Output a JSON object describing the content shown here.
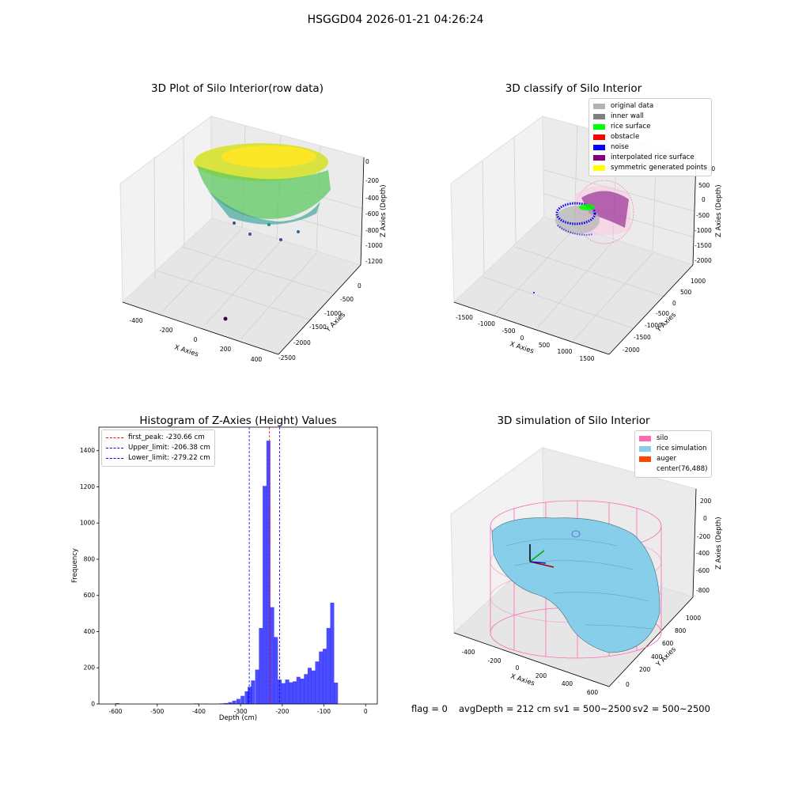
{
  "suptitle": "HSGGD04 2026-01-21 04:26:24",
  "raw_plot": {
    "title": "3D Plot of Silo Interior(row data)",
    "xlabel": "X Axies",
    "ylabel": "Y Axies",
    "zlabel": "Z Axies (Depth)",
    "xticks": [
      "-400",
      "-200",
      "0",
      "200",
      "400"
    ],
    "yticks": [
      "0",
      "-500",
      "-1000",
      "-1500",
      "-2000",
      "-2500"
    ],
    "zticks": [
      "0",
      "-200",
      "-400",
      "-600",
      "-800",
      "-1000",
      "-1200"
    ]
  },
  "classify_plot": {
    "title": "3D classify of Silo Interior",
    "xlabel": "X Axies",
    "ylabel": "Y Axies",
    "zlabel": "Z Axies (Depth)",
    "xticks": [
      "-1500",
      "-1000",
      "-500",
      "0",
      "500",
      "1000",
      "1500"
    ],
    "yticks": [
      "1000",
      "500",
      "0",
      "-500",
      "-1000",
      "-1500",
      "-2000"
    ],
    "zticks": [
      "1000",
      "500",
      "0",
      "-500",
      "-1000",
      "-1500",
      "-2000"
    ],
    "legend": [
      {
        "label": "original data",
        "color": "#b3b3b3"
      },
      {
        "label": "inner wall",
        "color": "#808080"
      },
      {
        "label": "rice surface",
        "color": "#00ff00"
      },
      {
        "label": "obstacle",
        "color": "#ff0000"
      },
      {
        "label": "noise",
        "color": "#0000ff"
      },
      {
        "label": "interpolated rice surface",
        "color": "#800080"
      },
      {
        "label": "symmetric generated points",
        "color": "#ffff00"
      }
    ]
  },
  "chart_data": {
    "type": "bar",
    "title": "Histogram of Z-Axies (Height) Values",
    "xlabel": "Depth (cm)",
    "ylabel": "Frequency",
    "xlim": [
      -640,
      28
    ],
    "ylim": [
      0,
      1530
    ],
    "xticks": [
      -600,
      -500,
      -400,
      -300,
      -200,
      -100,
      0
    ],
    "yticks": [
      0,
      200,
      400,
      600,
      800,
      1000,
      1200,
      1400
    ],
    "bin_width": 9.5,
    "bins": [
      {
        "x": -600,
        "count": 4
      },
      {
        "x": -410,
        "count": 3
      },
      {
        "x": -390,
        "count": 2
      },
      {
        "x": -350,
        "count": 3
      },
      {
        "x": -340,
        "count": 5
      },
      {
        "x": -330,
        "count": 10
      },
      {
        "x": -320,
        "count": 18
      },
      {
        "x": -310,
        "count": 28
      },
      {
        "x": -300,
        "count": 45
      },
      {
        "x": -290,
        "count": 70
      },
      {
        "x": -283,
        "count": 95
      },
      {
        "x": -275,
        "count": 130
      },
      {
        "x": -265,
        "count": 190
      },
      {
        "x": -256,
        "count": 420
      },
      {
        "x": -247,
        "count": 1205
      },
      {
        "x": -238,
        "count": 1455
      },
      {
        "x": -229,
        "count": 535
      },
      {
        "x": -220,
        "count": 370
      },
      {
        "x": -211,
        "count": 135
      },
      {
        "x": -202,
        "count": 115
      },
      {
        "x": -193,
        "count": 135
      },
      {
        "x": -184,
        "count": 120
      },
      {
        "x": -175,
        "count": 125
      },
      {
        "x": -166,
        "count": 150
      },
      {
        "x": -157,
        "count": 140
      },
      {
        "x": -148,
        "count": 165
      },
      {
        "x": -139,
        "count": 200
      },
      {
        "x": -130,
        "count": 185
      },
      {
        "x": -121,
        "count": 235
      },
      {
        "x": -112,
        "count": 290
      },
      {
        "x": -103,
        "count": 305
      },
      {
        "x": -94,
        "count": 420
      },
      {
        "x": -85,
        "count": 560
      },
      {
        "x": -76,
        "count": 118
      }
    ],
    "lines": [
      {
        "label": "first_peak: -230.66 cm",
        "x": -230.66,
        "color": "#ff0000"
      },
      {
        "label": "Upper_limit: -206.38 cm",
        "x": -206.38,
        "color": "#0000ff"
      },
      {
        "label": "Lower_limit: -279.22 cm",
        "x": -279.22,
        "color": "#0000ff"
      }
    ],
    "bar_color": "#0000ff",
    "legend_position": "top-left"
  },
  "sim_plot": {
    "title": "3D simulation of Silo Interior",
    "xlabel": "X Axies",
    "ylabel": "Y Axies",
    "zlabel": "Z Axies (Depth)",
    "xticks": [
      "-400",
      "-200",
      "0",
      "200",
      "400",
      "600"
    ],
    "yticks": [
      "0",
      "200",
      "400",
      "600",
      "800",
      "1000"
    ],
    "zticks": [
      "200",
      "0",
      "-200",
      "-400",
      "-600",
      "-800"
    ],
    "legend": [
      {
        "label": "silo",
        "color": "#ff69b4"
      },
      {
        "label": "rice simulation",
        "color": "#87ceeb"
      },
      {
        "label": "auger",
        "color": "#ff4500"
      },
      {
        "label": "center(76,488)",
        "color": ""
      }
    ]
  },
  "footer": {
    "flag": "flag = 0",
    "avg": "avgDepth = 212 cm",
    "sv1": "sv1 = 500~2500",
    "sv2": "sv2 = 500~2500"
  }
}
